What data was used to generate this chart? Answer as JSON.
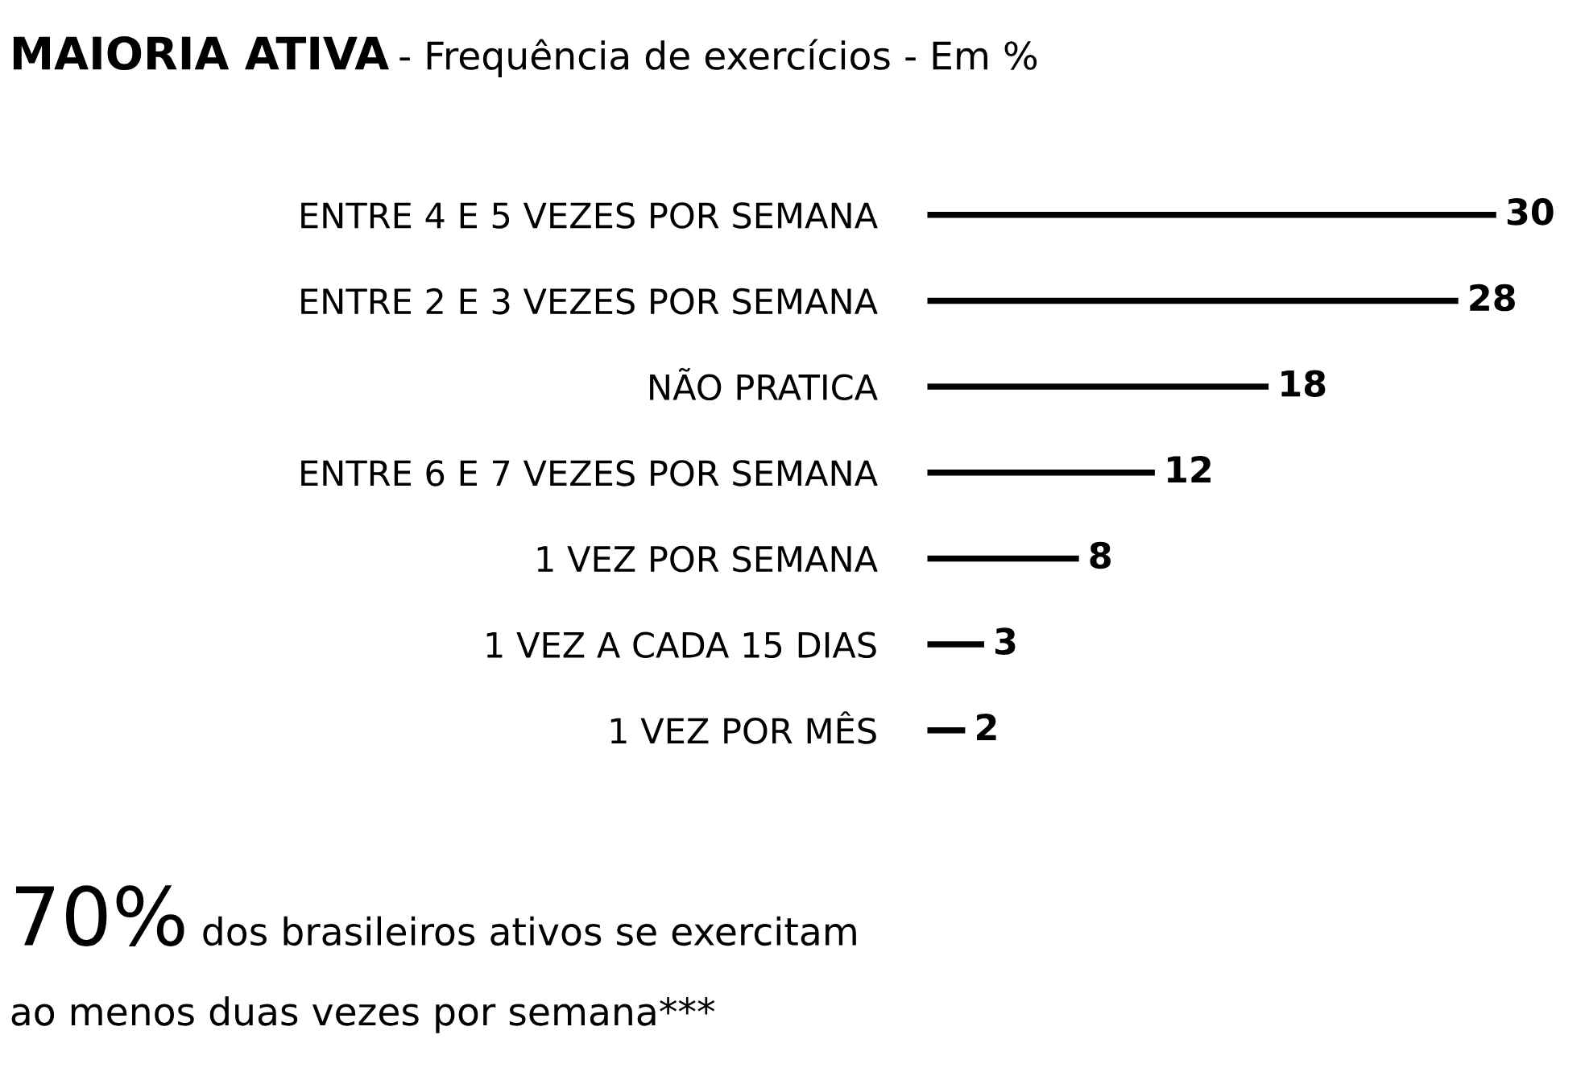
{
  "chart_data": {
    "type": "bar",
    "orientation": "horizontal",
    "title": "MAIORIA ATIVA",
    "subtitle": "- Frequência de exercícios - Em %",
    "categories": [
      "ENTRE 4 E 5 VEZES POR SEMANA",
      "ENTRE 2 E 3 VEZES POR SEMANA",
      "NÃO PRATICA",
      "ENTRE 6 E 7 VEZES POR SEMANA",
      "1 VEZ POR SEMANA",
      "1 VEZ A CADA 15 DIAS",
      "1 VEZ POR MÊS"
    ],
    "values": [
      30,
      28,
      18,
      12,
      8,
      3,
      2
    ],
    "color": "#000000",
    "data_labels": true,
    "annotations": [
      "70%",
      "dos brasileiros ativos se exercitam",
      "ao menos duas vezes por semana***"
    ]
  }
}
